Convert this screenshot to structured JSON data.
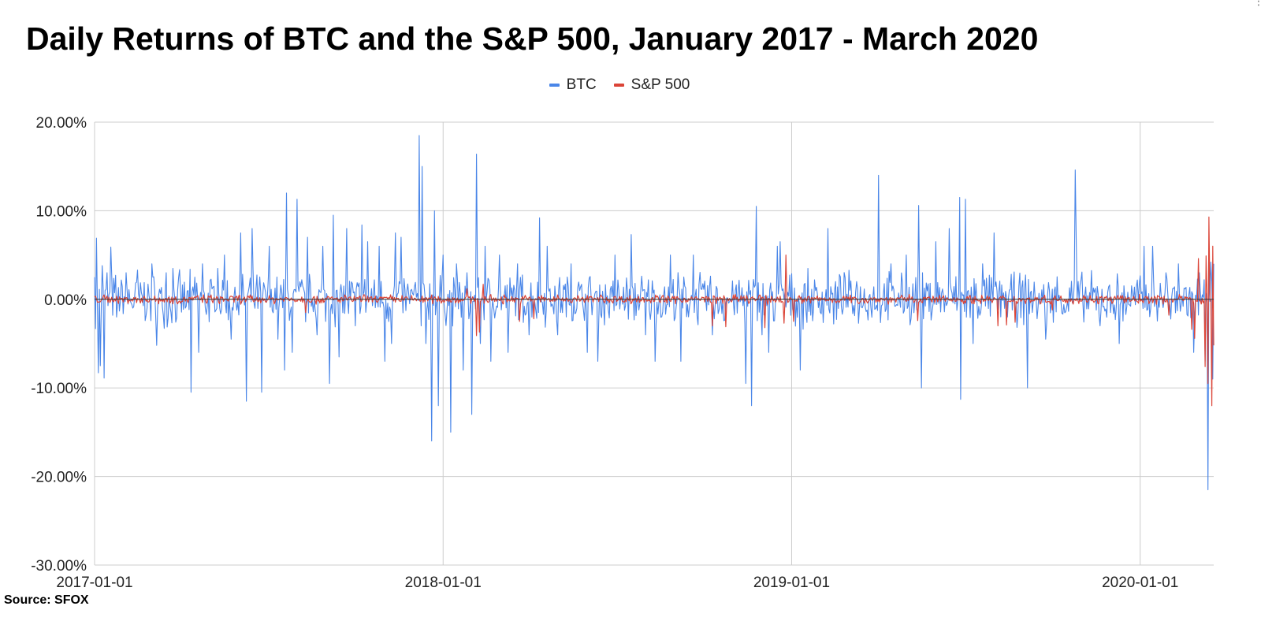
{
  "chart_data": {
    "type": "line",
    "title": "Daily Returns of BTC and the S&P 500, January 2017 - March 2020",
    "source": "Source: SFOX",
    "xlabel": "",
    "ylabel": "",
    "x_range": [
      "2017-01-01",
      "2020-03-18"
    ],
    "ylim": [
      -0.3,
      0.2
    ],
    "yticks": [
      {
        "value": 0.2,
        "label": "20.00%"
      },
      {
        "value": 0.1,
        "label": "10.00%"
      },
      {
        "value": 0.0,
        "label": "0.00%"
      },
      {
        "value": -0.1,
        "label": "-10.00%"
      },
      {
        "value": -0.2,
        "label": "-20.00%"
      },
      {
        "value": -0.3,
        "label": "-30.00%"
      }
    ],
    "xticks": [
      {
        "date": "2017-01-01",
        "label": "2017-01-01"
      },
      {
        "date": "2018-01-01",
        "label": "2018-01-01"
      },
      {
        "date": "2019-01-01",
        "label": "2019-01-01"
      },
      {
        "date": "2020-01-01",
        "label": "2020-01-01"
      }
    ],
    "grid": true,
    "legend_position": "top-center",
    "series": [
      {
        "name": "BTC",
        "color": "#4a86e8",
        "points": [
          [
            "2017-01-01",
            0.025
          ],
          [
            "2017-01-03",
            0.069
          ],
          [
            "2017-01-05",
            -0.083
          ],
          [
            "2017-01-07",
            -0.075
          ],
          [
            "2017-01-09",
            0.038
          ],
          [
            "2017-01-11",
            -0.089
          ],
          [
            "2017-01-14",
            0.03
          ],
          [
            "2017-01-18",
            0.059
          ],
          [
            "2017-01-24",
            -0.02
          ],
          [
            "2017-02-03",
            0.03
          ],
          [
            "2017-02-10",
            -0.01
          ],
          [
            "2017-02-15",
            0.033
          ],
          [
            "2017-03-02",
            0.04
          ],
          [
            "2017-03-07",
            -0.052
          ],
          [
            "2017-03-17",
            0.03
          ],
          [
            "2017-03-24",
            0.035
          ],
          [
            "2017-04-06",
            -0.01
          ],
          [
            "2017-04-12",
            -0.105
          ],
          [
            "2017-04-16",
            0.025
          ],
          [
            "2017-04-20",
            -0.06
          ],
          [
            "2017-04-24",
            0.04
          ],
          [
            "2017-05-10",
            0.035
          ],
          [
            "2017-05-17",
            0.05
          ],
          [
            "2017-05-24",
            -0.045
          ],
          [
            "2017-06-03",
            0.075
          ],
          [
            "2017-06-09",
            -0.115
          ],
          [
            "2017-06-15",
            0.08
          ],
          [
            "2017-06-25",
            -0.105
          ],
          [
            "2017-07-03",
            0.06
          ],
          [
            "2017-07-12",
            -0.045
          ],
          [
            "2017-07-19",
            -0.08
          ],
          [
            "2017-07-21",
            0.12
          ],
          [
            "2017-07-27",
            -0.06
          ],
          [
            "2017-08-01",
            0.113
          ],
          [
            "2017-08-12",
            0.07
          ],
          [
            "2017-08-22",
            -0.04
          ],
          [
            "2017-08-28",
            0.06
          ],
          [
            "2017-09-04",
            -0.095
          ],
          [
            "2017-09-08",
            0.095
          ],
          [
            "2017-09-14",
            -0.065
          ],
          [
            "2017-09-22",
            0.08
          ],
          [
            "2017-10-01",
            -0.03
          ],
          [
            "2017-10-08",
            0.084
          ],
          [
            "2017-10-14",
            0.065
          ],
          [
            "2017-10-26",
            0.06
          ],
          [
            "2017-11-01",
            -0.07
          ],
          [
            "2017-11-08",
            -0.05
          ],
          [
            "2017-11-12",
            0.075
          ],
          [
            "2017-11-18",
            0.07
          ],
          [
            "2017-11-28",
            0.01
          ],
          [
            "2017-12-07",
            0.185
          ],
          [
            "2017-12-09",
            -0.03
          ],
          [
            "2017-12-10",
            0.15
          ],
          [
            "2017-12-14",
            -0.05
          ],
          [
            "2017-12-20",
            -0.16
          ],
          [
            "2017-12-23",
            0.1
          ],
          [
            "2017-12-27",
            -0.12
          ],
          [
            "2018-01-01",
            0.05
          ],
          [
            "2018-01-09",
            -0.15
          ],
          [
            "2018-01-15",
            0.04
          ],
          [
            "2018-01-22",
            -0.08
          ],
          [
            "2018-01-31",
            -0.13
          ],
          [
            "2018-02-05",
            0.164
          ],
          [
            "2018-02-09",
            -0.05
          ],
          [
            "2018-02-14",
            0.06
          ],
          [
            "2018-02-20",
            -0.07
          ],
          [
            "2018-03-01",
            0.05
          ],
          [
            "2018-03-10",
            -0.06
          ],
          [
            "2018-03-20",
            0.04
          ],
          [
            "2018-04-01",
            -0.04
          ],
          [
            "2018-04-12",
            0.092
          ],
          [
            "2018-04-20",
            0.06
          ],
          [
            "2018-05-01",
            -0.04
          ],
          [
            "2018-05-15",
            0.04
          ],
          [
            "2018-06-01",
            -0.06
          ],
          [
            "2018-06-12",
            -0.07
          ],
          [
            "2018-06-30",
            0.05
          ],
          [
            "2018-07-17",
            0.073
          ],
          [
            "2018-08-01",
            -0.04
          ],
          [
            "2018-08-11",
            -0.07
          ],
          [
            "2018-08-27",
            0.05
          ],
          [
            "2018-09-07",
            -0.07
          ],
          [
            "2018-09-20",
            0.05
          ],
          [
            "2018-10-10",
            -0.04
          ],
          [
            "2018-11-14",
            -0.095
          ],
          [
            "2018-11-20",
            -0.12
          ],
          [
            "2018-11-25",
            0.105
          ],
          [
            "2018-12-01",
            -0.04
          ],
          [
            "2018-12-08",
            -0.06
          ],
          [
            "2018-12-17",
            0.06
          ],
          [
            "2018-12-20",
            0.065
          ],
          [
            "2019-01-10",
            -0.08
          ],
          [
            "2019-02-08",
            0.08
          ],
          [
            "2019-03-10",
            0.02
          ],
          [
            "2019-04-02",
            0.14
          ],
          [
            "2019-04-15",
            0.04
          ],
          [
            "2019-05-01",
            0.05
          ],
          [
            "2019-05-14",
            0.106
          ],
          [
            "2019-05-17",
            -0.1
          ],
          [
            "2019-06-01",
            0.065
          ],
          [
            "2019-06-15",
            0.08
          ],
          [
            "2019-06-26",
            0.115
          ],
          [
            "2019-06-27",
            -0.113
          ],
          [
            "2019-07-02",
            0.113
          ],
          [
            "2019-07-10",
            -0.05
          ],
          [
            "2019-07-20",
            0.04
          ],
          [
            "2019-08-01",
            0.075
          ],
          [
            "2019-09-05",
            -0.1
          ],
          [
            "2019-09-24",
            -0.045
          ],
          [
            "2019-10-25",
            0.146
          ],
          [
            "2019-10-26",
            0.07
          ],
          [
            "2019-11-20",
            -0.03
          ],
          [
            "2019-12-10",
            -0.05
          ],
          [
            "2020-01-05",
            0.06
          ],
          [
            "2020-01-14",
            0.06
          ],
          [
            "2020-01-28",
            0.03
          ],
          [
            "2020-02-10",
            0.04
          ],
          [
            "2020-02-26",
            -0.06
          ],
          [
            "2020-03-03",
            0.03
          ],
          [
            "2020-03-09",
            -0.07
          ],
          [
            "2020-03-12",
            -0.215
          ],
          [
            "2020-03-13",
            0.035
          ],
          [
            "2020-03-15",
            0.042
          ],
          [
            "2020-03-17",
            -0.09
          ],
          [
            "2020-03-18",
            0.04
          ]
        ]
      },
      {
        "name": "S&P 500",
        "color": "#db4437",
        "points": [
          [
            "2017-01-01",
            0.003
          ],
          [
            "2017-03-15",
            -0.003
          ],
          [
            "2017-06-01",
            0.004
          ],
          [
            "2017-08-10",
            -0.015
          ],
          [
            "2017-11-01",
            0.002
          ],
          [
            "2018-01-26",
            0.012
          ],
          [
            "2018-02-05",
            -0.041
          ],
          [
            "2018-02-08",
            -0.037
          ],
          [
            "2018-02-12",
            0.017
          ],
          [
            "2018-03-22",
            -0.025
          ],
          [
            "2018-04-06",
            -0.022
          ],
          [
            "2018-06-15",
            0.005
          ],
          [
            "2018-10-10",
            -0.03
          ],
          [
            "2018-10-24",
            -0.031
          ],
          [
            "2018-12-04",
            -0.032
          ],
          [
            "2018-12-24",
            -0.027
          ],
          [
            "2018-12-26",
            0.05
          ],
          [
            "2019-01-03",
            -0.025
          ],
          [
            "2019-05-13",
            -0.024
          ],
          [
            "2019-08-05",
            -0.03
          ],
          [
            "2019-08-14",
            -0.029
          ],
          [
            "2019-08-23",
            -0.026
          ],
          [
            "2019-10-01",
            -0.012
          ],
          [
            "2020-01-31",
            -0.018
          ],
          [
            "2020-02-24",
            -0.034
          ],
          [
            "2020-02-27",
            -0.044
          ],
          [
            "2020-03-02",
            0.046
          ],
          [
            "2020-03-09",
            -0.076
          ],
          [
            "2020-03-10",
            0.049
          ],
          [
            "2020-03-12",
            -0.095
          ],
          [
            "2020-03-13",
            0.093
          ],
          [
            "2020-03-16",
            -0.12
          ],
          [
            "2020-03-17",
            0.06
          ],
          [
            "2020-03-18",
            -0.052
          ]
        ]
      }
    ]
  }
}
